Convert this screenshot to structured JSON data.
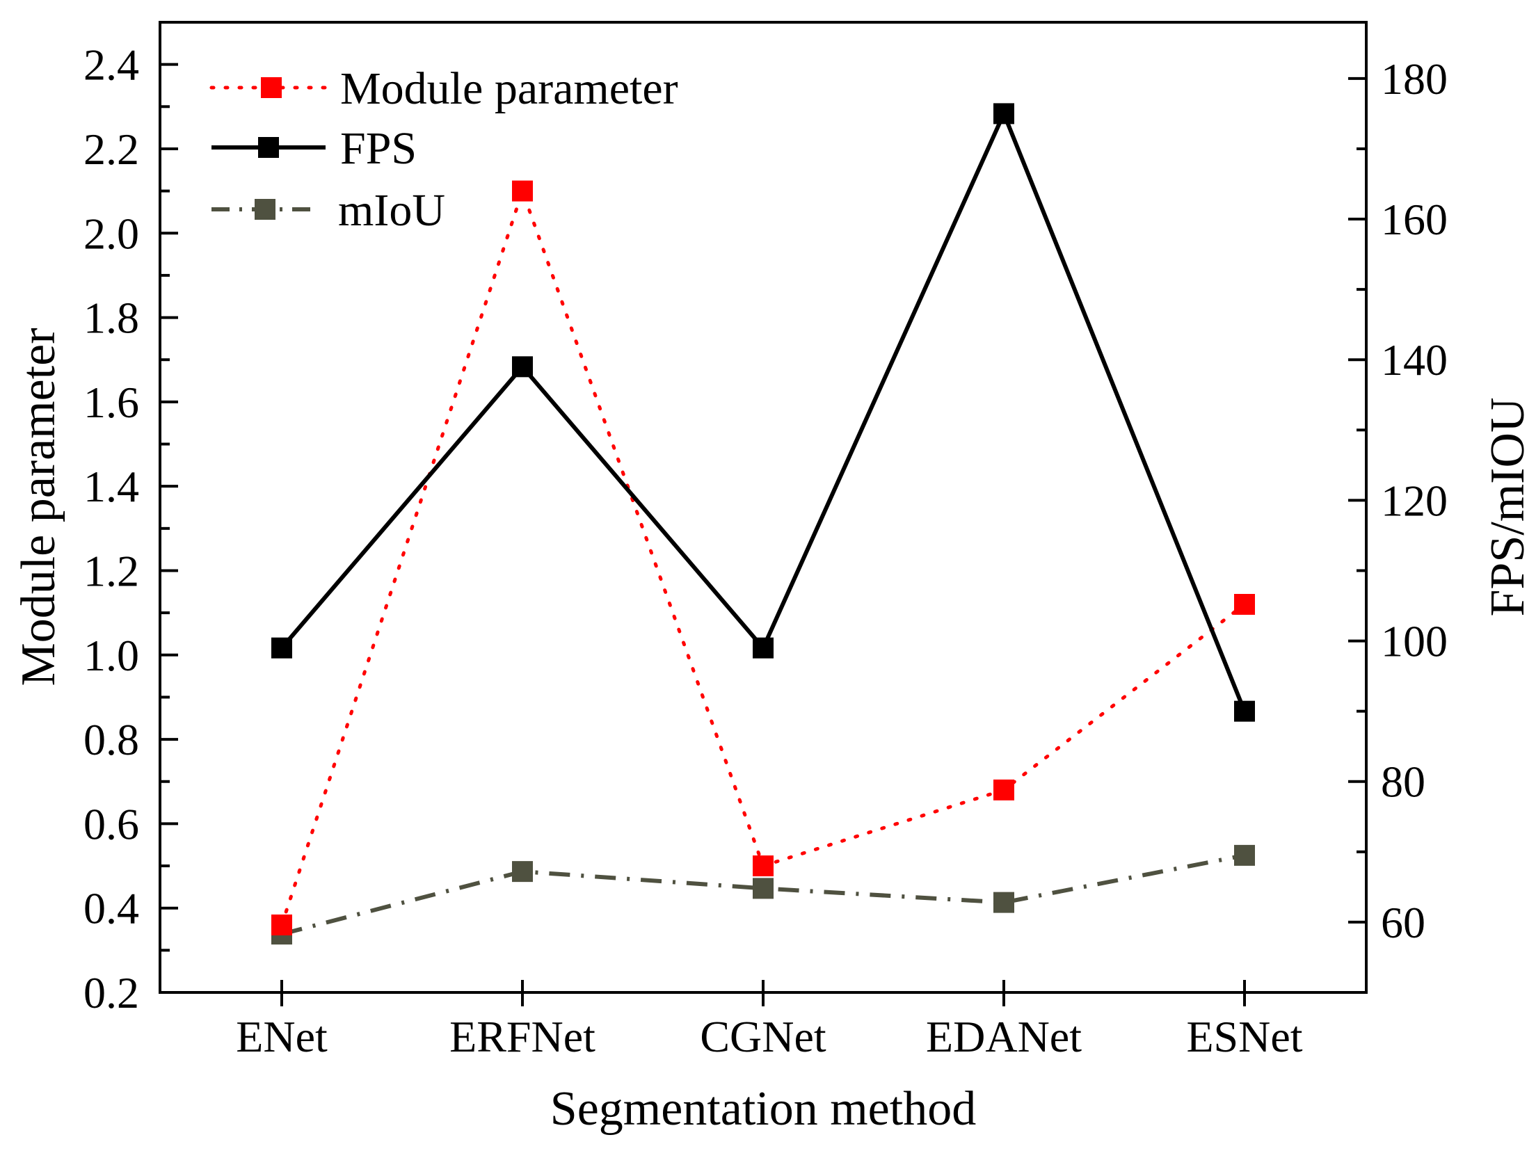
{
  "chart_data": {
    "type": "line",
    "categories": [
      "ENet",
      "ERFNet",
      "CGNet",
      "EDANet",
      "ESNet"
    ],
    "xlabel": "Segmentation method",
    "ylabel_left": "Module parameter",
    "ylabel_right": "FPS/mIOU",
    "ylim_left": [
      0.2,
      2.5
    ],
    "yticks_left": [
      0.2,
      0.4,
      0.6,
      0.8,
      1.0,
      1.2,
      1.4,
      1.6,
      1.8,
      2.0,
      2.2,
      2.4
    ],
    "ylim_right": [
      50,
      188
    ],
    "yticks_right": [
      60,
      80,
      100,
      120,
      140,
      160,
      180
    ],
    "grid": false,
    "legend_position": "top-left",
    "series": [
      {
        "name": "Module parameter",
        "axis": "left",
        "values": [
          0.36,
          2.1,
          0.5,
          0.68,
          1.12
        ],
        "color": "#ff0000",
        "line_style": "dotted",
        "marker": "square"
      },
      {
        "name": "FPS",
        "axis": "right",
        "values": [
          99,
          139,
          99,
          175,
          90
        ],
        "color": "#000000",
        "line_style": "solid",
        "marker": "square"
      },
      {
        "name": "mIoU",
        "axis": "right",
        "values": [
          58.3,
          67.2,
          64.8,
          62.8,
          69.5
        ],
        "color": "#4f5140",
        "line_style": "dashdot",
        "marker": "square"
      }
    ]
  }
}
